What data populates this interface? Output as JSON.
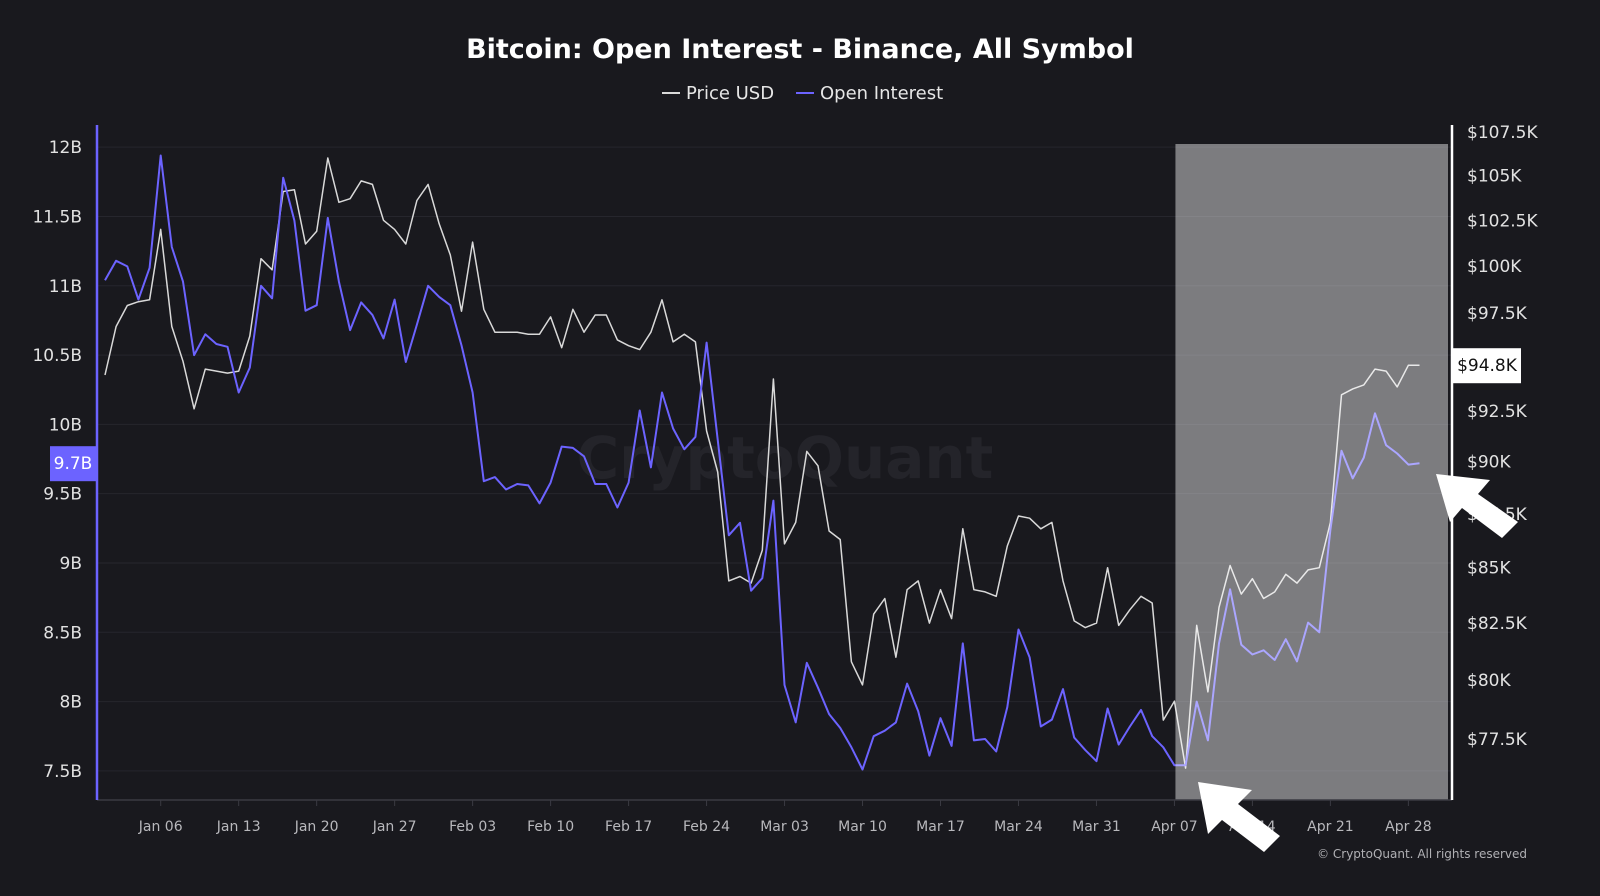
{
  "chart_data": {
    "type": "line",
    "title": "Bitcoin: Open Interest - Binance, All Symbol",
    "watermark": "CryptoQuant",
    "copyright": "© CryptoQuant. All rights reserved",
    "legend_position": "top-center",
    "grid": true,
    "x_start": "2025-01-01",
    "x_end": "2025-04-29",
    "x_tick_labels": [
      "Jan 06",
      "Jan 13",
      "Jan 20",
      "Jan 27",
      "Feb 03",
      "Feb 10",
      "Feb 17",
      "Feb 24",
      "Mar 03",
      "Mar 10",
      "Mar 17",
      "Mar 24",
      "Mar 31",
      "Apr 07",
      "Apr 14",
      "Apr 21",
      "Apr 28"
    ],
    "left_axis": {
      "ticks": [
        "12B",
        "11.5B",
        "11B",
        "10.5B",
        "10B",
        "9.5B",
        "9B",
        "8.5B",
        "8B",
        "7.5B"
      ],
      "tick_values": [
        12,
        11.5,
        11,
        10.5,
        10,
        9.5,
        9,
        8.5,
        8,
        7.5
      ],
      "ylim": [
        7.29,
        12.16
      ],
      "unit": "B",
      "current_label": "9.7B",
      "color": "#6c63ff"
    },
    "right_axis": {
      "ticks": [
        "$107.5K",
        "$105K",
        "$102.5K",
        "$100K",
        "$97.5K",
        "$92.5K",
        "$90K",
        "$87.5K",
        "$85K",
        "$82.5K",
        "$80K",
        "$77.5K"
      ],
      "tick_values": [
        107.5,
        105,
        102.5,
        100,
        97.5,
        92.5,
        90,
        87.5,
        85,
        82.5,
        80,
        77.5
      ],
      "ylim": [
        75.0,
        107.9
      ],
      "scale": "log",
      "unit": "K USD",
      "current_label": "$94.8K",
      "color": "#ffffff"
    },
    "highlight_range": [
      "2025-04-07",
      "2025-04-29"
    ],
    "highlight_color": "#808080",
    "series": [
      {
        "name": "Price USD",
        "axis": "right",
        "color": "#d9d9d9",
        "values": [
          94.3,
          96.8,
          97.9,
          98.1,
          98.2,
          102.0,
          96.8,
          95.0,
          92.6,
          94.6,
          94.5,
          94.4,
          94.5,
          96.3,
          100.4,
          99.8,
          104.1,
          104.2,
          101.2,
          101.9,
          106.0,
          103.5,
          103.7,
          104.7,
          104.5,
          102.5,
          102.0,
          101.2,
          103.6,
          104.5,
          102.3,
          100.6,
          97.6,
          101.3,
          97.7,
          96.5,
          96.5,
          96.5,
          96.4,
          96.4,
          97.3,
          95.7,
          97.7,
          96.5,
          97.4,
          97.4,
          96.1,
          95.8,
          95.6,
          96.5,
          98.2,
          96.0,
          96.4,
          96.0,
          91.5,
          89.5,
          84.4,
          84.6,
          84.3,
          85.8,
          94.1,
          86.1,
          87.1,
          90.5,
          89.8,
          86.7,
          86.3,
          80.8,
          79.8,
          82.9,
          83.6,
          81.0,
          84.0,
          84.4,
          82.5,
          84.0,
          82.7,
          86.8,
          84.0,
          83.9,
          83.7,
          86.0,
          87.4,
          87.3,
          86.8,
          87.1,
          84.4,
          82.6,
          82.3,
          82.5,
          85.0,
          82.4,
          83.1,
          83.7,
          83.4,
          78.3,
          79.1,
          76.3,
          82.4,
          79.5,
          83.2,
          85.1,
          83.8,
          84.5,
          83.6,
          83.9,
          84.7,
          84.3,
          84.9,
          85.0,
          87.1,
          93.3,
          93.6,
          93.8,
          94.6,
          94.5,
          93.7,
          94.8,
          94.8
        ]
      },
      {
        "name": "Open Interest",
        "axis": "left",
        "color": "#6c63ff",
        "values": [
          11.04,
          11.18,
          11.14,
          10.9,
          11.13,
          11.94,
          11.28,
          11.03,
          10.5,
          10.65,
          10.58,
          10.56,
          10.23,
          10.41,
          11.0,
          10.91,
          11.78,
          11.47,
          10.82,
          10.86,
          11.49,
          11.03,
          10.68,
          10.88,
          10.79,
          10.62,
          10.9,
          10.45,
          10.72,
          11.0,
          10.92,
          10.86,
          10.57,
          10.23,
          9.59,
          9.62,
          9.53,
          9.57,
          9.56,
          9.43,
          9.58,
          9.84,
          9.83,
          9.77,
          9.57,
          9.57,
          9.4,
          9.58,
          10.1,
          9.69,
          10.23,
          9.97,
          9.82,
          9.91,
          10.59,
          9.89,
          9.2,
          9.29,
          8.8,
          8.89,
          9.45,
          8.12,
          7.85,
          8.28,
          8.1,
          7.91,
          7.81,
          7.67,
          7.51,
          7.75,
          7.79,
          7.85,
          8.13,
          7.93,
          7.61,
          7.88,
          7.68,
          8.42,
          7.72,
          7.73,
          7.64,
          7.96,
          8.52,
          8.32,
          7.82,
          7.87,
          8.09,
          7.74,
          7.65,
          7.57,
          7.95,
          7.69,
          7.82,
          7.94,
          7.75,
          7.67,
          7.54,
          7.54,
          8.0,
          7.72,
          8.42,
          8.81,
          8.41,
          8.34,
          8.37,
          8.3,
          8.45,
          8.29,
          8.57,
          8.5,
          9.24,
          9.81,
          9.61,
          9.76,
          10.08,
          9.85,
          9.79,
          9.71,
          9.72
        ]
      }
    ],
    "annotations": [
      "white arrow pointing at Apr 07 low",
      "white arrow pointing at latest open interest value"
    ]
  }
}
